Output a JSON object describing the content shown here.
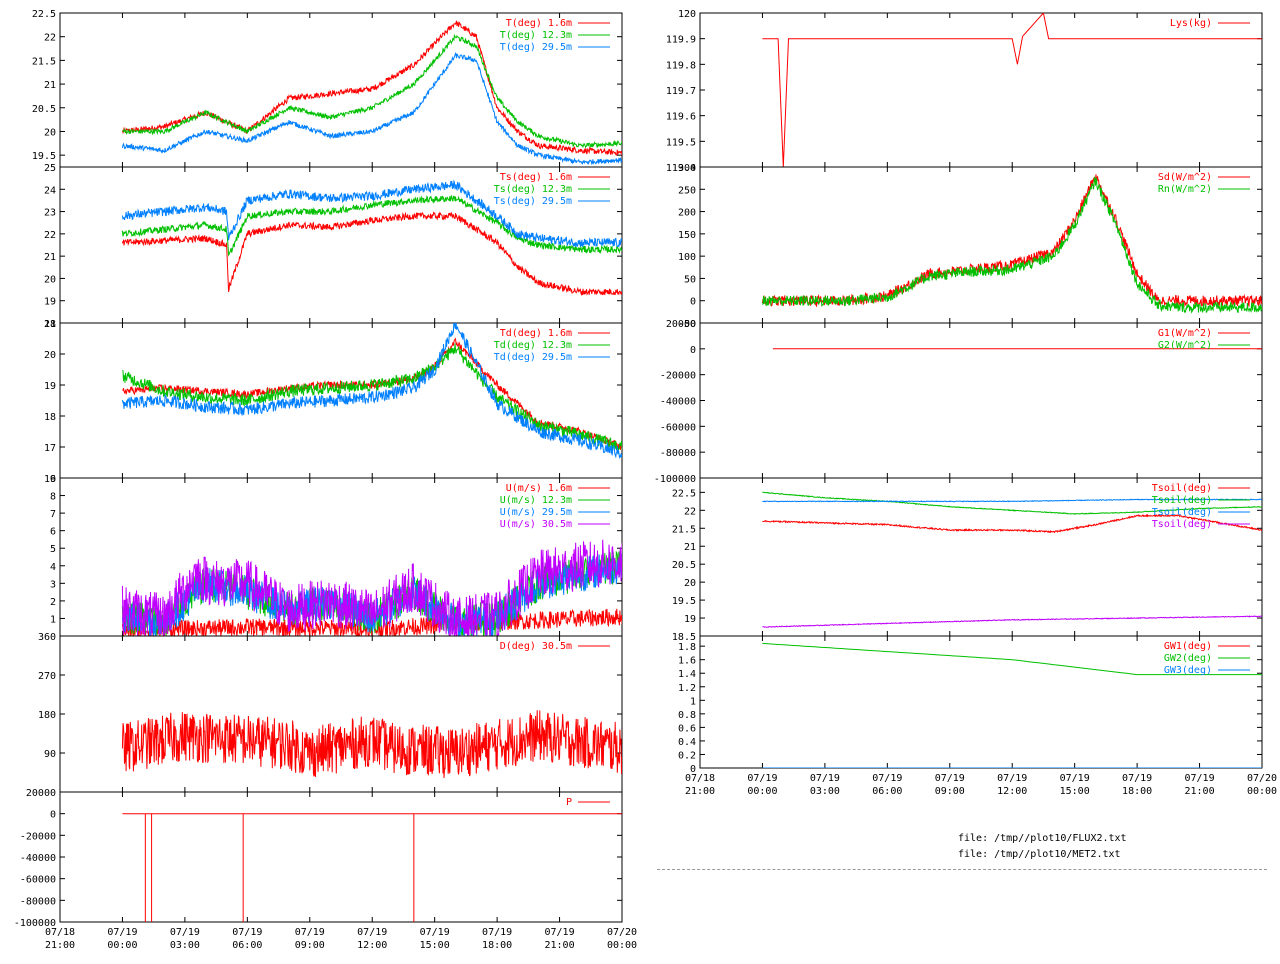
{
  "colors": {
    "red": "#ff0000",
    "green": "#00c000",
    "blue": "#0080ff",
    "purple": "#c000ff"
  },
  "files": [
    "file: /tmp//plot10/FLUX2.txt",
    "file: /tmp//plot10/MET2.txt"
  ],
  "x_ticks": {
    "left": [
      [
        "07/18",
        "21:00"
      ],
      [
        "07/19",
        "00:00"
      ],
      [
        "07/19",
        "03:00"
      ],
      [
        "07/19",
        "06:00"
      ],
      [
        "07/19",
        "09:00"
      ],
      [
        "07/19",
        "12:00"
      ],
      [
        "07/19",
        "15:00"
      ],
      [
        "07/19",
        "18:00"
      ],
      [
        "07/19",
        "21:00"
      ],
      [
        "07/20",
        "00:00"
      ]
    ],
    "right": [
      [
        "07/18",
        "21:00"
      ],
      [
        "07/19",
        "00:00"
      ],
      [
        "07/19",
        "03:00"
      ],
      [
        "07/19",
        "06:00"
      ],
      [
        "07/19",
        "09:00"
      ],
      [
        "07/19",
        "12:00"
      ],
      [
        "07/19",
        "15:00"
      ],
      [
        "07/19",
        "18:00"
      ],
      [
        "07/19",
        "21:00"
      ],
      [
        "07/20",
        "00:00"
      ]
    ]
  },
  "chart_data": [
    {
      "type": "line",
      "column": "left",
      "panel": 0,
      "ylim": [
        19.25,
        22.5
      ],
      "yticks": [
        "19.5",
        "20",
        "20.5",
        "21",
        "21.5",
        "22",
        "22.5"
      ],
      "xlim_hours": [
        -3,
        24
      ],
      "series": [
        {
          "name": "T(deg)  1.6m",
          "color": "red",
          "noise": 0.06,
          "x": [
            0,
            2,
            4,
            6,
            8,
            10,
            12,
            14,
            16,
            17,
            18,
            19,
            20,
            22,
            24
          ],
          "y": [
            20.0,
            20.1,
            20.4,
            20.0,
            20.7,
            20.8,
            20.9,
            21.4,
            22.3,
            22.0,
            20.5,
            20.0,
            19.7,
            19.6,
            19.55
          ]
        },
        {
          "name": "T(deg) 12.3m",
          "color": "green",
          "noise": 0.05,
          "x": [
            0,
            2,
            4,
            6,
            8,
            10,
            12,
            14,
            16,
            17,
            18,
            19,
            20,
            22,
            24
          ],
          "y": [
            20.0,
            20.0,
            20.4,
            20.0,
            20.5,
            20.3,
            20.5,
            21.0,
            22.0,
            21.8,
            20.7,
            20.2,
            19.9,
            19.7,
            19.75
          ]
        },
        {
          "name": "T(deg) 29.5m",
          "color": "blue",
          "noise": 0.05,
          "x": [
            0,
            2,
            4,
            6,
            8,
            10,
            12,
            14,
            16,
            17,
            18,
            19,
            20,
            22,
            24
          ],
          "y": [
            19.7,
            19.6,
            20.0,
            19.8,
            20.2,
            19.9,
            20.0,
            20.4,
            21.6,
            21.5,
            20.2,
            19.7,
            19.5,
            19.35,
            19.4
          ]
        }
      ]
    },
    {
      "type": "line",
      "column": "left",
      "panel": 1,
      "ylim": [
        18,
        25
      ],
      "yticks": [
        "18",
        "19",
        "20",
        "21",
        "22",
        "23",
        "24",
        "25"
      ],
      "xlim_hours": [
        -3,
        24
      ],
      "series": [
        {
          "name": "Ts(deg)  1.6m",
          "color": "red",
          "noise": 0.15,
          "x": [
            0,
            2,
            4,
            5,
            5.1,
            6,
            8,
            10,
            12,
            14,
            16,
            18,
            19,
            20,
            22,
            24
          ],
          "y": [
            21.6,
            21.7,
            21.8,
            21.5,
            19.5,
            22.0,
            22.4,
            22.3,
            22.6,
            22.8,
            22.8,
            21.6,
            20.5,
            19.8,
            19.4,
            19.4
          ]
        },
        {
          "name": "Ts(deg) 12.3m",
          "color": "green",
          "noise": 0.15,
          "x": [
            0,
            2,
            4,
            5,
            5.1,
            6,
            8,
            10,
            12,
            14,
            16,
            18,
            19,
            20,
            22,
            24
          ],
          "y": [
            22.0,
            22.2,
            22.4,
            22.2,
            21.0,
            22.8,
            23.0,
            23.0,
            23.3,
            23.5,
            23.6,
            22.5,
            21.8,
            21.5,
            21.3,
            21.3
          ]
        },
        {
          "name": "Ts(deg) 29.5m",
          "color": "blue",
          "noise": 0.2,
          "x": [
            0,
            2,
            4,
            5,
            5.1,
            6,
            8,
            10,
            12,
            14,
            16,
            18,
            19,
            20,
            22,
            24
          ],
          "y": [
            22.8,
            23.0,
            23.2,
            23.0,
            21.8,
            23.5,
            23.8,
            23.6,
            23.7,
            24.0,
            24.2,
            22.8,
            22.0,
            21.8,
            21.6,
            21.6
          ]
        }
      ]
    },
    {
      "type": "line",
      "column": "left",
      "panel": 2,
      "ylim": [
        16,
        21
      ],
      "yticks": [
        "16",
        "17",
        "18",
        "19",
        "20",
        "21"
      ],
      "xlim_hours": [
        -3,
        24
      ],
      "series": [
        {
          "name": "Td(deg)  1.6m",
          "color": "red",
          "noise": 0.12,
          "x": [
            0,
            2,
            4,
            6,
            8,
            10,
            12,
            14,
            15,
            16,
            18,
            20,
            22,
            24
          ],
          "y": [
            18.8,
            18.9,
            18.8,
            18.7,
            18.9,
            19.0,
            19.0,
            19.2,
            19.6,
            20.4,
            19.0,
            17.8,
            17.5,
            17.0
          ]
        },
        {
          "name": "Td(deg) 12.3m",
          "color": "green",
          "noise": 0.2,
          "x": [
            0,
            2,
            4,
            6,
            8,
            10,
            12,
            14,
            15,
            16,
            18,
            20,
            22,
            24
          ],
          "y": [
            19.3,
            18.8,
            18.6,
            18.5,
            18.8,
            18.9,
            19.0,
            19.2,
            19.6,
            20.2,
            18.6,
            17.7,
            17.4,
            17.0
          ]
        },
        {
          "name": "Td(deg) 29.5m",
          "color": "blue",
          "noise": 0.2,
          "x": [
            0,
            2,
            4,
            6,
            8,
            10,
            12,
            14,
            15,
            16,
            18,
            20,
            22,
            24
          ],
          "y": [
            18.4,
            18.5,
            18.3,
            18.2,
            18.4,
            18.5,
            18.6,
            18.9,
            19.5,
            21.0,
            18.4,
            17.5,
            17.2,
            16.8
          ]
        }
      ]
    },
    {
      "type": "line",
      "column": "left",
      "panel": 3,
      "ylim": [
        0,
        9
      ],
      "yticks": [
        "1",
        "2",
        "3",
        "4",
        "5",
        "6",
        "7",
        "8",
        "9"
      ],
      "xlim_hours": [
        -3,
        24
      ],
      "series": [
        {
          "name": "U(m/s)  1.6m",
          "color": "red",
          "noise": 0.5,
          "x": [
            0,
            6,
            12,
            18,
            24
          ],
          "y": [
            0.3,
            0.5,
            0.4,
            0.8,
            1.1
          ]
        },
        {
          "name": "U(m/s) 12.3m",
          "color": "green",
          "noise": 1.0,
          "x": [
            0,
            2,
            4,
            6,
            8,
            10,
            12,
            14,
            16,
            18,
            20,
            22,
            24
          ],
          "y": [
            1.2,
            0.8,
            3.0,
            2.5,
            1.5,
            2.0,
            1.0,
            2.5,
            0.8,
            1.0,
            3.0,
            3.5,
            4.0
          ]
        },
        {
          "name": "U(m/s) 29.5m",
          "color": "blue",
          "noise": 1.0,
          "x": [
            0,
            2,
            4,
            6,
            8,
            10,
            12,
            14,
            16,
            18,
            20,
            22,
            24
          ],
          "y": [
            1.2,
            0.8,
            3.0,
            2.5,
            1.5,
            2.0,
            1.0,
            2.5,
            0.8,
            1.0,
            3.0,
            3.5,
            4.0
          ]
        },
        {
          "name": "U(m/s) 30.5m",
          "color": "purple",
          "noise": 1.4,
          "x": [
            0,
            2,
            3.5,
            4.5,
            6,
            8,
            10,
            12,
            14,
            16,
            18,
            20,
            22,
            24
          ],
          "y": [
            1.5,
            1.0,
            3.5,
            3.0,
            3.0,
            1.5,
            2.0,
            1.2,
            2.8,
            0.8,
            1.2,
            3.5,
            4.0,
            4.2
          ]
        }
      ]
    },
    {
      "type": "line",
      "column": "left",
      "panel": 4,
      "ylim": [
        0,
        360
      ],
      "yticks": [
        "90",
        "180",
        "270",
        "360"
      ],
      "xlim_hours": [
        -3,
        24
      ],
      "series": [
        {
          "name": "D(deg)  30.5m",
          "color": "red",
          "noise": 60,
          "x": [
            0,
            3,
            6,
            8,
            9,
            12,
            13,
            16,
            18,
            20,
            24
          ],
          "y": [
            100,
            130,
            120,
            110,
            90,
            120,
            100,
            90,
            110,
            130,
            100
          ]
        }
      ]
    },
    {
      "type": "line",
      "column": "left",
      "panel": 5,
      "ylim": [
        -100000,
        20000
      ],
      "yticks": [
        "-100000",
        "-80000",
        "-60000",
        "-40000",
        "-20000",
        "0",
        "20000"
      ],
      "xlim_hours": [
        -3,
        24
      ],
      "series": [
        {
          "name": "P",
          "color": "red",
          "noise": 0,
          "x": [
            0,
            24
          ],
          "y": [
            0,
            0
          ],
          "spikes": [
            [
              1.1,
              -100000
            ],
            [
              1.4,
              -100000
            ],
            [
              5.8,
              -100000
            ],
            [
              14.0,
              -100000
            ]
          ]
        }
      ]
    },
    {
      "type": "line",
      "column": "right",
      "panel": 0,
      "ylim": [
        119.4,
        120
      ],
      "yticks": [
        "119.4",
        "119.5",
        "119.6",
        "119.7",
        "119.8",
        "119.9",
        "120"
      ],
      "xlim_hours": [
        -3,
        24
      ],
      "series": [
        {
          "name": "Lys(kg)",
          "color": "red",
          "noise": 0,
          "x": [
            0,
            0.9,
            1.0,
            1.1,
            1.2,
            12.2,
            12.3,
            12.4,
            13.5,
            13.6,
            24
          ],
          "y": [
            119.9,
            119.9,
            119.4,
            119.8,
            119.9,
            119.9,
            119.7,
            119.9,
            120.0,
            119.9,
            119.9
          ]
        }
      ]
    },
    {
      "type": "line",
      "column": "right",
      "panel": 1,
      "ylim": [
        -50,
        300
      ],
      "yticks": [
        "-50",
        "0",
        "50",
        "100",
        "150",
        "200",
        "250",
        "300"
      ],
      "xlim_hours": [
        -3,
        24
      ],
      "series": [
        {
          "name": "Sd(W/m^2)",
          "color": "red",
          "noise": 12,
          "x": [
            0,
            4,
            6,
            8,
            10,
            12,
            14,
            15,
            16,
            17,
            18,
            19,
            24
          ],
          "y": [
            0,
            0,
            10,
            60,
            70,
            80,
            110,
            180,
            280,
            180,
            60,
            0,
            0
          ]
        },
        {
          "name": "Rn(W/m^2)",
          "color": "green",
          "noise": 12,
          "x": [
            0,
            4,
            6,
            8,
            10,
            12,
            14,
            15,
            16,
            17,
            18,
            19,
            20,
            24
          ],
          "y": [
            0,
            0,
            8,
            55,
            65,
            70,
            100,
            170,
            270,
            170,
            40,
            -10,
            -15,
            -15
          ]
        }
      ]
    },
    {
      "type": "line",
      "column": "right",
      "panel": 2,
      "ylim": [
        -100000,
        20000
      ],
      "yticks": [
        "-100000",
        "-80000",
        "-60000",
        "-40000",
        "-20000",
        "0",
        "20000"
      ],
      "xlim_hours": [
        -3,
        24
      ],
      "series": [
        {
          "name": "G1(W/m^2)",
          "color": "red",
          "noise": 0,
          "x": [
            0.5,
            24
          ],
          "y": [
            0,
            0
          ]
        },
        {
          "name": "G2(W/m^2)",
          "color": "green",
          "noise": 0,
          "x": [],
          "y": []
        }
      ]
    },
    {
      "type": "line",
      "column": "right",
      "panel": 3,
      "ylim": [
        18.5,
        22.9
      ],
      "yticks": [
        "18.5",
        "19",
        "19.5",
        "20",
        "20.5",
        "21",
        "21.5",
        "22",
        "22.5"
      ],
      "xlim_hours": [
        -3,
        24
      ],
      "series": [
        {
          "name": "Tsoil(deg)",
          "color": "red",
          "noise": 0.02,
          "x": [
            0,
            3,
            6,
            9,
            12,
            14,
            16,
            18,
            20,
            22,
            24
          ],
          "y": [
            21.7,
            21.65,
            21.6,
            21.45,
            21.45,
            21.4,
            21.6,
            21.85,
            21.85,
            21.65,
            21.45
          ]
        },
        {
          "name": "Tsoil(deg)",
          "color": "green",
          "noise": 0.01,
          "x": [
            0,
            3,
            6,
            9,
            12,
            15,
            18,
            21,
            24
          ],
          "y": [
            22.5,
            22.35,
            22.25,
            22.1,
            22.0,
            21.9,
            21.95,
            22.05,
            22.1
          ]
        },
        {
          "name": "Tsoil(deg)",
          "color": "blue",
          "noise": 0.01,
          "x": [
            0,
            6,
            12,
            18,
            24
          ],
          "y": [
            22.25,
            22.25,
            22.25,
            22.3,
            22.3
          ]
        },
        {
          "name": "Tsoil(deg)",
          "color": "purple",
          "noise": 0.01,
          "x": [
            0,
            6,
            12,
            18,
            24
          ],
          "y": [
            18.75,
            18.85,
            18.95,
            19.0,
            19.05
          ]
        }
      ]
    },
    {
      "type": "line",
      "column": "right",
      "panel": 4,
      "ylim": [
        0,
        1.95
      ],
      "yticks": [
        "0",
        "0.2",
        "0.4",
        "0.6",
        "0.8",
        "1",
        "1.2",
        "1.4",
        "1.6",
        "1.8"
      ],
      "xlim_hours": [
        -3,
        24
      ],
      "series": [
        {
          "name": "GW1(deg)",
          "color": "red",
          "noise": 0,
          "x": [],
          "y": []
        },
        {
          "name": "GW2(deg)",
          "color": "green",
          "noise": 0,
          "x": [
            0,
            6,
            12,
            18,
            24
          ],
          "y": [
            1.84,
            1.72,
            1.6,
            1.38,
            1.38
          ]
        },
        {
          "name": "GW3(deg)",
          "color": "blue",
          "noise": 0,
          "x": [
            0,
            24
          ],
          "y": [
            0,
            0
          ]
        }
      ]
    }
  ]
}
